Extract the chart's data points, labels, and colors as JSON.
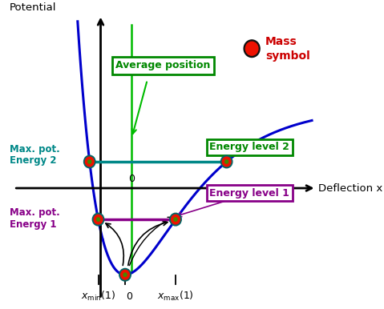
{
  "bg_color": "#ffffff",
  "curve_color": "#0000cc",
  "axis_color": "#000000",
  "energy1_line_color": "#880088",
  "energy2_line_color": "#008888",
  "avg_pos_line_color": "#00bb00",
  "mass_outer_color": "#000000",
  "mass_inner_color": "#cc0000",
  "mass_center_color": "#008800",
  "title_y": "Potential",
  "title_x": "Deflection x",
  "label_0_top": "0",
  "label_0_bottom": "0",
  "label_xmin": "$x_{\\min}(1)$",
  "label_xmax": "$x_{\\max}(1)$",
  "energy1_label": "Energy level 1",
  "energy2_label": "Energy level 2",
  "avg_pos_label": "Average position",
  "mass_label_line1": "Mass",
  "mass_label_line2": "symbol",
  "maxpot1_line1": "Max. pot.",
  "maxpot1_line2": "Energy 1",
  "maxpot2_line1": "Max. pot.",
  "maxpot2_line2": "Energy 2",
  "energy1_box_color": "#880088",
  "energy2_box_color": "#008800",
  "avg_pos_box_color": "#008800",
  "figsize": [
    4.79,
    3.86
  ],
  "dpi": 100
}
